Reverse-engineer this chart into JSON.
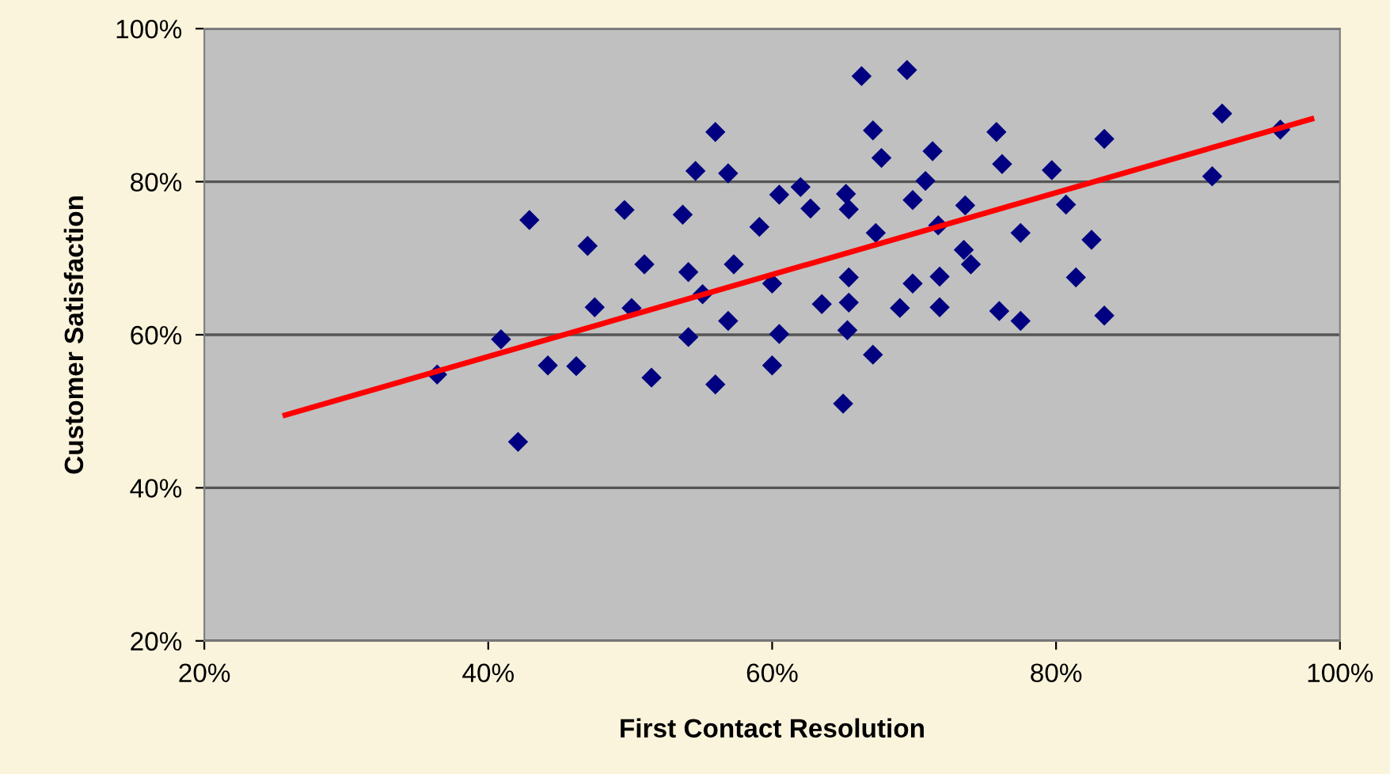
{
  "chart_data": {
    "type": "scatter",
    "xlabel": "First Contact Resolution",
    "ylabel": "Customer Satisfaction",
    "xlim": [
      20,
      100
    ],
    "ylim": [
      20,
      100
    ],
    "xticks": [
      {
        "value": 20,
        "label": "20%"
      },
      {
        "value": 40,
        "label": "40%"
      },
      {
        "value": 60,
        "label": "60%"
      },
      {
        "value": 80,
        "label": "80%"
      },
      {
        "value": 100,
        "label": "100%"
      }
    ],
    "yticks": [
      {
        "value": 20,
        "label": "20%"
      },
      {
        "value": 40,
        "label": "40%"
      },
      {
        "value": 60,
        "label": "60%"
      },
      {
        "value": 80,
        "label": "80%"
      },
      {
        "value": 100,
        "label": "100%"
      }
    ],
    "grid": "y",
    "marker": "diamond",
    "legend": false,
    "series": [
      {
        "color": "#000080",
        "x": [
          36.4,
          40.9,
          42.1,
          42.9,
          44.2,
          46.2,
          47.0,
          47.5,
          49.6,
          50.1,
          51.0,
          51.5,
          53.7,
          54.1,
          54.1,
          54.6,
          55.1,
          56.0,
          56.0,
          56.9,
          56.9,
          57.3,
          59.1,
          60.0,
          60.0,
          60.5,
          60.5,
          62.0,
          62.7,
          63.5,
          65.0,
          65.2,
          65.4,
          65.4,
          65.4,
          65.3,
          66.3,
          67.1,
          67.7,
          67.3,
          67.1,
          69.0,
          69.5,
          69.9,
          69.9,
          70.8,
          71.3,
          71.7,
          71.8,
          71.8,
          73.6,
          73.5,
          74.0,
          75.8,
          76.0,
          76.2,
          77.5,
          77.5,
          79.7,
          80.7,
          81.4,
          82.5,
          83.4,
          83.4,
          91.0,
          91.7,
          95.8
        ],
        "values": [
          54.8,
          59.4,
          46.0,
          75.0,
          56.0,
          55.9,
          71.6,
          63.6,
          76.3,
          63.5,
          69.2,
          54.4,
          75.7,
          68.2,
          59.7,
          81.4,
          65.3,
          86.5,
          53.5,
          81.1,
          61.8,
          69.2,
          74.1,
          66.7,
          56.0,
          78.3,
          60.1,
          79.3,
          76.5,
          64.0,
          51.0,
          78.4,
          76.4,
          67.5,
          64.2,
          60.6,
          93.8,
          86.7,
          83.1,
          73.3,
          57.4,
          63.5,
          94.6,
          77.6,
          66.7,
          80.1,
          84.0,
          74.3,
          67.6,
          63.6,
          76.9,
          71.1,
          69.2,
          86.5,
          63.1,
          82.3,
          73.3,
          61.8,
          81.5,
          77.0,
          67.5,
          72.4,
          85.6,
          62.5,
          80.7,
          88.9,
          86.8
        ]
      },
      {
        "type": "line",
        "color": "#ff0000",
        "marker": "none",
        "line_style": "solid",
        "x": [
          25.7,
          98.0
        ],
        "values": [
          49.5,
          88.2
        ]
      }
    ]
  }
}
